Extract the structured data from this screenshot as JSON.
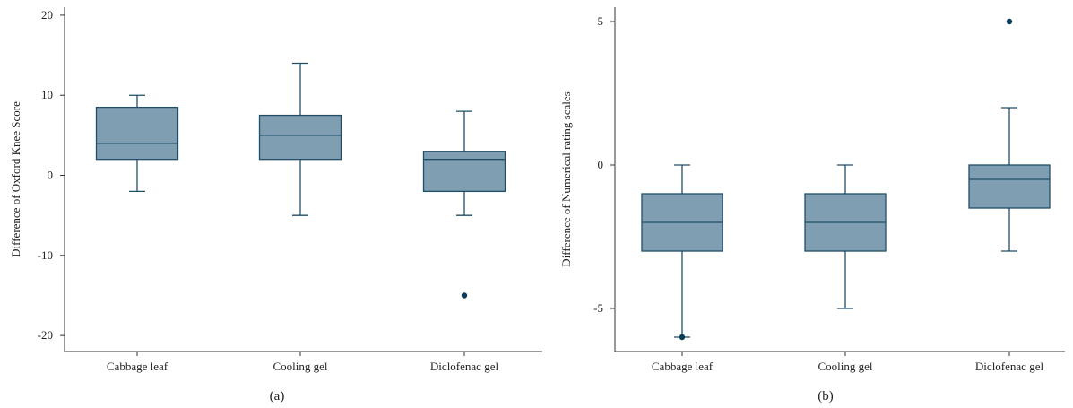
{
  "chart_data": [
    {
      "type": "box",
      "panel_label": "(a)",
      "ylabel": "Difference of Oxford Knee Score",
      "xlabel": "",
      "ylim": [
        -22,
        21
      ],
      "yticks": [
        20,
        10,
        0,
        -10,
        -20
      ],
      "categories": [
        "Cabbage leaf",
        "Cooling gel",
        "Diclofenac gel"
      ],
      "boxes": [
        {
          "whisker_low": -2,
          "q1": 2,
          "median": 4,
          "q3": 8.5,
          "whisker_high": 10,
          "outliers": []
        },
        {
          "whisker_low": -5,
          "q1": 2,
          "median": 5,
          "q3": 7.5,
          "whisker_high": 14,
          "outliers": []
        },
        {
          "whisker_low": -5,
          "q1": -2,
          "median": 2,
          "q3": 3,
          "whisker_high": 8,
          "outliers": [
            -15
          ]
        }
      ]
    },
    {
      "type": "box",
      "panel_label": "(b)",
      "ylabel": "Difference of Numerical rating scales",
      "xlabel": "",
      "ylim": [
        -6.5,
        5.5
      ],
      "yticks": [
        5,
        0,
        -5
      ],
      "categories": [
        "Cabbage leaf",
        "Cooling gel",
        "Diclofenac gel"
      ],
      "boxes": [
        {
          "whisker_low": -6,
          "q1": -3,
          "median": -2,
          "q3": -1,
          "whisker_high": 0,
          "outliers": [
            -6
          ]
        },
        {
          "whisker_low": -5,
          "q1": -3,
          "median": -2,
          "q3": -1,
          "whisker_high": 0,
          "outliers": []
        },
        {
          "whisker_low": -3,
          "q1": -1.5,
          "median": -0.5,
          "q3": 0,
          "whisker_high": 2,
          "outliers": [
            5
          ]
        }
      ]
    }
  ]
}
